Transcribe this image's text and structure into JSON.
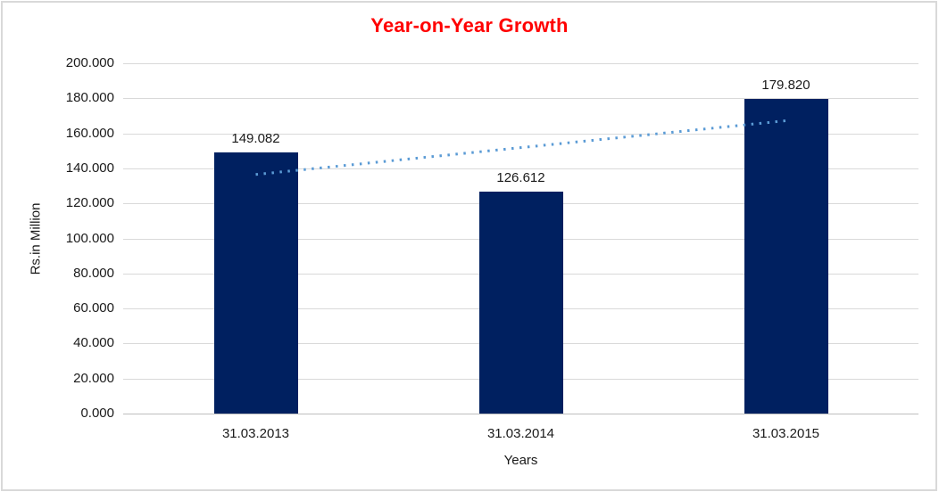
{
  "chart_data": {
    "type": "bar",
    "title": "Year-on-Year Growth",
    "title_color": "#FF0000",
    "categories": [
      "31.03.2013",
      "31.03.2014",
      "31.03.2015"
    ],
    "values": [
      149.082,
      126.612,
      179.82
    ],
    "value_labels": [
      "149.082",
      "126.612",
      "179.820"
    ],
    "xlabel": "Years",
    "ylabel": "Rs.in Million",
    "ylim": [
      0,
      200
    ],
    "ytick_step": 20,
    "ytick_labels": [
      "0.000",
      "20.000",
      "40.000",
      "60.000",
      "80.000",
      "100.000",
      "120.000",
      "140.000",
      "160.000",
      "180.000",
      "200.000"
    ],
    "bar_color": "#002060",
    "grid": true,
    "grid_color": "#D9D9D9",
    "axis_line_color": "#BFBFBF",
    "legend": "none",
    "trendline": {
      "type": "linear",
      "style": "dotted",
      "color": "#5B9BD5",
      "endpoint_values": [
        136.5,
        167.2
      ]
    }
  }
}
